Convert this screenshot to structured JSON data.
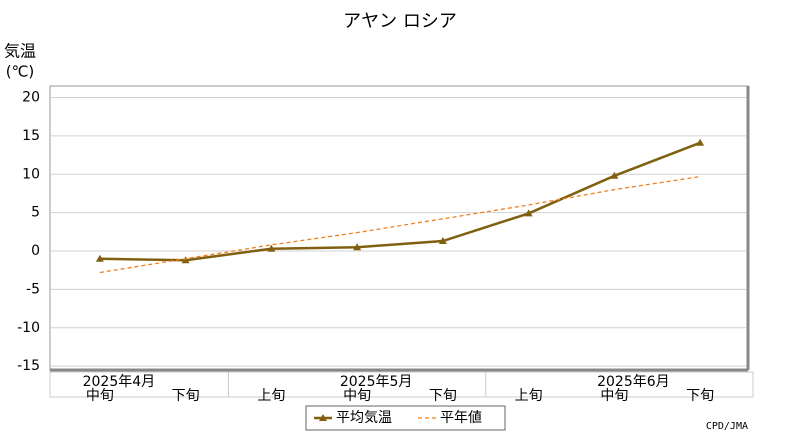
{
  "chart_data": {
    "type": "line",
    "title": "アヤン ロシア",
    "y_label": [
      "気温",
      "(℃)"
    ],
    "categories": [
      "中旬",
      "下旬",
      "上旬",
      "中旬",
      "下旬",
      "上旬",
      "中旬",
      "下旬"
    ],
    "months": [
      "2025年4月",
      null,
      null,
      "2025年5月",
      null,
      null,
      "2025年6月",
      null
    ],
    "series": [
      {
        "name": "平均気温",
        "color": "#806010",
        "dashed": false,
        "marker": true,
        "values": [
          -1.0,
          -1.2,
          0.3,
          0.5,
          1.3,
          4.9,
          9.8,
          14.1
        ]
      },
      {
        "name": "平年値",
        "color": "#f08020",
        "dashed": true,
        "marker": false,
        "values": [
          -2.8,
          -1.0,
          0.8,
          2.4,
          4.2,
          6.0,
          8.0,
          9.7
        ]
      }
    ],
    "ylim": [
      -15.5,
      21.5
    ],
    "yticks": [
      -15,
      -10,
      -5,
      0,
      5,
      10,
      15,
      20
    ],
    "grid": true,
    "source": "CPD/JMA"
  }
}
